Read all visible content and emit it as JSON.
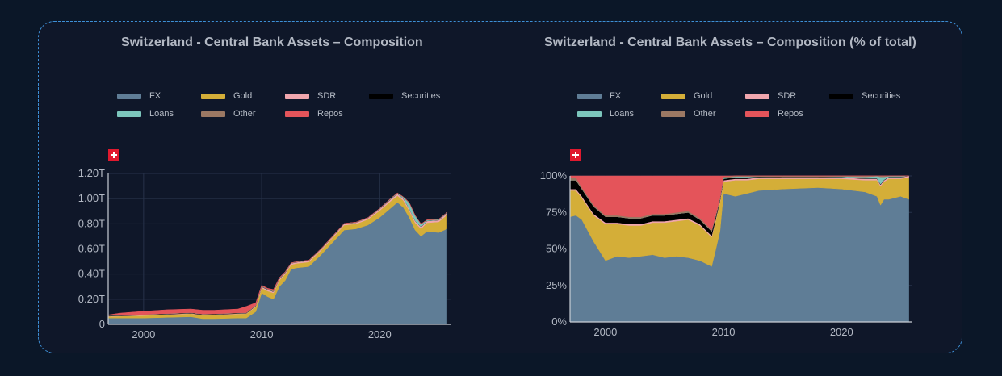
{
  "colors": {
    "background": "#0b1728",
    "panel": "#0f1729",
    "border": "#3d8fd6",
    "grid": "#27324a",
    "text": "#b3b9c4"
  },
  "legend": [
    {
      "name": "FX",
      "color": "#5f7d96"
    },
    {
      "name": "Gold",
      "color": "#d4ae38"
    },
    {
      "name": "SDR",
      "color": "#f0a6ad"
    },
    {
      "name": "Securities",
      "color": "#000000"
    },
    {
      "name": "Loans",
      "color": "#7cc6bc"
    },
    {
      "name": "Other",
      "color": "#9b7863"
    },
    {
      "name": "Repos",
      "color": "#e4545a"
    }
  ],
  "chart_data": [
    {
      "type": "area",
      "stacked": true,
      "title": "Switzerland - Central Bank Assets – Composition",
      "flag_icon": "switzerland-flag-icon",
      "x_ticks": [
        "2000",
        "2010",
        "2020"
      ],
      "y_ticks": [
        "0",
        "0.20T",
        "0.40T",
        "0.60T",
        "0.80T",
        "1.00T",
        "1.20T"
      ],
      "xlim": [
        1997,
        2026
      ],
      "ylim": [
        0,
        1.2
      ],
      "y_unit": "T",
      "x": [
        1997,
        1998,
        2000,
        2002,
        2004,
        2005,
        2006,
        2008,
        2008.7,
        2009.5,
        2010,
        2010.5,
        2011,
        2011.5,
        2012,
        2012.5,
        2013,
        2014,
        2015,
        2016,
        2017,
        2018,
        2019,
        2020,
        2021,
        2021.5,
        2022,
        2022.5,
        2023,
        2023.5,
        2024,
        2025,
        2025.7
      ],
      "series": [
        {
          "name": "FX",
          "values": [
            0.05,
            0.05,
            0.05,
            0.055,
            0.06,
            0.045,
            0.045,
            0.05,
            0.05,
            0.1,
            0.25,
            0.22,
            0.2,
            0.3,
            0.35,
            0.44,
            0.45,
            0.46,
            0.55,
            0.65,
            0.75,
            0.76,
            0.79,
            0.85,
            0.93,
            0.97,
            0.93,
            0.85,
            0.75,
            0.7,
            0.74,
            0.73,
            0.76
          ]
        },
        {
          "name": "Gold",
          "values": [
            0.012,
            0.015,
            0.02,
            0.022,
            0.025,
            0.028,
            0.03,
            0.033,
            0.035,
            0.04,
            0.04,
            0.045,
            0.05,
            0.05,
            0.05,
            0.035,
            0.035,
            0.036,
            0.035,
            0.037,
            0.039,
            0.039,
            0.045,
            0.055,
            0.055,
            0.053,
            0.055,
            0.055,
            0.058,
            0.06,
            0.068,
            0.085,
            0.11
          ]
        },
        {
          "name": "SDR",
          "values": [
            0.003,
            0.003,
            0.003,
            0.003,
            0.003,
            0.003,
            0.003,
            0.003,
            0.003,
            0.006,
            0.01,
            0.01,
            0.01,
            0.01,
            0.01,
            0.01,
            0.01,
            0.01,
            0.01,
            0.01,
            0.01,
            0.01,
            0.01,
            0.012,
            0.015,
            0.015,
            0.015,
            0.015,
            0.015,
            0.014,
            0.014,
            0.014,
            0.014
          ]
        },
        {
          "name": "Securities",
          "values": [
            0.004,
            0.004,
            0.004,
            0.004,
            0.004,
            0.004,
            0.004,
            0.004,
            0.003,
            0.002,
            0.002,
            0.002,
            0.002,
            0.002,
            0.002,
            0.001,
            0.001,
            0.001,
            0.001,
            0.001,
            0.001,
            0.001,
            0.001,
            0.001,
            0.001,
            0.001,
            0.001,
            0.001,
            0.001,
            0.001,
            0.001,
            0.001,
            0.001
          ]
        },
        {
          "name": "Loans",
          "values": [
            0,
            0,
            0,
            0,
            0,
            0,
            0,
            0,
            0,
            0.002,
            0.002,
            0.002,
            0.002,
            0.002,
            0.002,
            0,
            0,
            0,
            0,
            0,
            0,
            0,
            0,
            0.002,
            0.003,
            0.003,
            0.01,
            0.045,
            0.04,
            0.02,
            0.005,
            0.003,
            0.002
          ]
        },
        {
          "name": "Other",
          "values": [
            0.002,
            0.002,
            0.002,
            0.002,
            0.002,
            0.002,
            0.002,
            0.002,
            0.002,
            0.002,
            0.003,
            0.003,
            0.003,
            0.003,
            0.003,
            0.003,
            0.003,
            0.003,
            0.003,
            0.003,
            0.003,
            0.003,
            0.003,
            0.003,
            0.003,
            0.003,
            0.003,
            0.003,
            0.003,
            0.003,
            0.003,
            0.003,
            0.003
          ]
        },
        {
          "name": "Repos",
          "values": [
            0.004,
            0.015,
            0.025,
            0.03,
            0.028,
            0.03,
            0.028,
            0.03,
            0.05,
            0.02,
            0.005,
            0.005,
            0.01,
            0.005,
            0.002,
            0,
            0,
            0,
            0,
            0,
            0,
            0,
            0,
            0,
            0,
            0,
            0,
            0,
            0,
            0,
            0,
            0,
            0
          ]
        }
      ]
    },
    {
      "type": "area",
      "stacked": true,
      "normalized": true,
      "title": "Switzerland - Central Bank Assets – Composition (% of total)",
      "flag_icon": "switzerland-flag-icon",
      "x_ticks": [
        "2000",
        "2010",
        "2020"
      ],
      "y_ticks": [
        "0%",
        "25%",
        "50%",
        "75%",
        "100%"
      ],
      "xlim": [
        1997,
        2026
      ],
      "ylim": [
        0,
        100
      ],
      "x": [
        1997,
        1997.5,
        1998,
        1999,
        2000,
        2001,
        2002,
        2003,
        2004,
        2005,
        2006,
        2007,
        2008,
        2008.5,
        2009,
        2009.3,
        2009.7,
        2010,
        2011,
        2012,
        2013,
        2015,
        2018,
        2020,
        2022,
        2023,
        2023.3,
        2023.6,
        2024,
        2025,
        2025.7
      ],
      "series": [
        {
          "name": "FX",
          "values": [
            72,
            73,
            70,
            55,
            42,
            45,
            44,
            45,
            46,
            44,
            45,
            44,
            42,
            40,
            38,
            48,
            62,
            88,
            86,
            88,
            90,
            91,
            92,
            91,
            89,
            86,
            80,
            84,
            84,
            86,
            84
          ]
        },
        {
          "name": "Gold",
          "values": [
            18,
            17,
            15,
            18,
            25,
            22,
            22,
            21,
            22,
            24,
            24,
            26,
            24,
            22,
            20,
            20,
            20,
            8,
            11,
            9,
            8,
            7,
            6,
            7,
            8,
            11,
            13,
            12,
            14,
            12,
            15
          ]
        },
        {
          "name": "SDR",
          "values": [
            1,
            1,
            1,
            1,
            1,
            1,
            1,
            1,
            1,
            1,
            1,
            1,
            1,
            1,
            1,
            1,
            1,
            1,
            1,
            1,
            1,
            1,
            1,
            1,
            1,
            1,
            1,
            1,
            1,
            1,
            1
          ]
        },
        {
          "name": "Securities",
          "values": [
            6,
            6,
            5,
            5,
            4,
            4,
            4,
            4,
            4,
            4,
            4,
            4,
            3,
            3,
            3,
            2,
            1,
            1,
            1,
            1,
            0.5,
            0.3,
            0.3,
            0.3,
            0.3,
            0.3,
            0.3,
            0.3,
            0.3,
            0.3,
            0.3
          ]
        },
        {
          "name": "Loans",
          "values": [
            0,
            0,
            0,
            0,
            0,
            0,
            0,
            0,
            0,
            0,
            0,
            0,
            0,
            0,
            0,
            0,
            0,
            0.5,
            0.5,
            0.5,
            0,
            0,
            0,
            0.3,
            1,
            1.5,
            5,
            2,
            0.5,
            0.5,
            0.3
          ]
        },
        {
          "name": "Other",
          "values": [
            2,
            2,
            1,
            1,
            1,
            1,
            1,
            1,
            1,
            1,
            1,
            1,
            1,
            1,
            1,
            1,
            1,
            1,
            0.5,
            0.5,
            0.5,
            0.7,
            0.7,
            0.4,
            0.7,
            0.2,
            0.7,
            0.7,
            0.2,
            0.2,
            0.4
          ]
        },
        {
          "name": "Repos",
          "values": [
            1,
            1,
            8,
            20,
            27,
            27,
            28,
            28,
            26,
            26,
            25,
            24,
            29,
            33,
            37,
            28,
            15,
            0.5,
            0,
            0,
            0,
            0,
            0,
            0,
            0,
            0,
            0,
            0,
            0,
            0,
            0
          ]
        }
      ]
    }
  ]
}
